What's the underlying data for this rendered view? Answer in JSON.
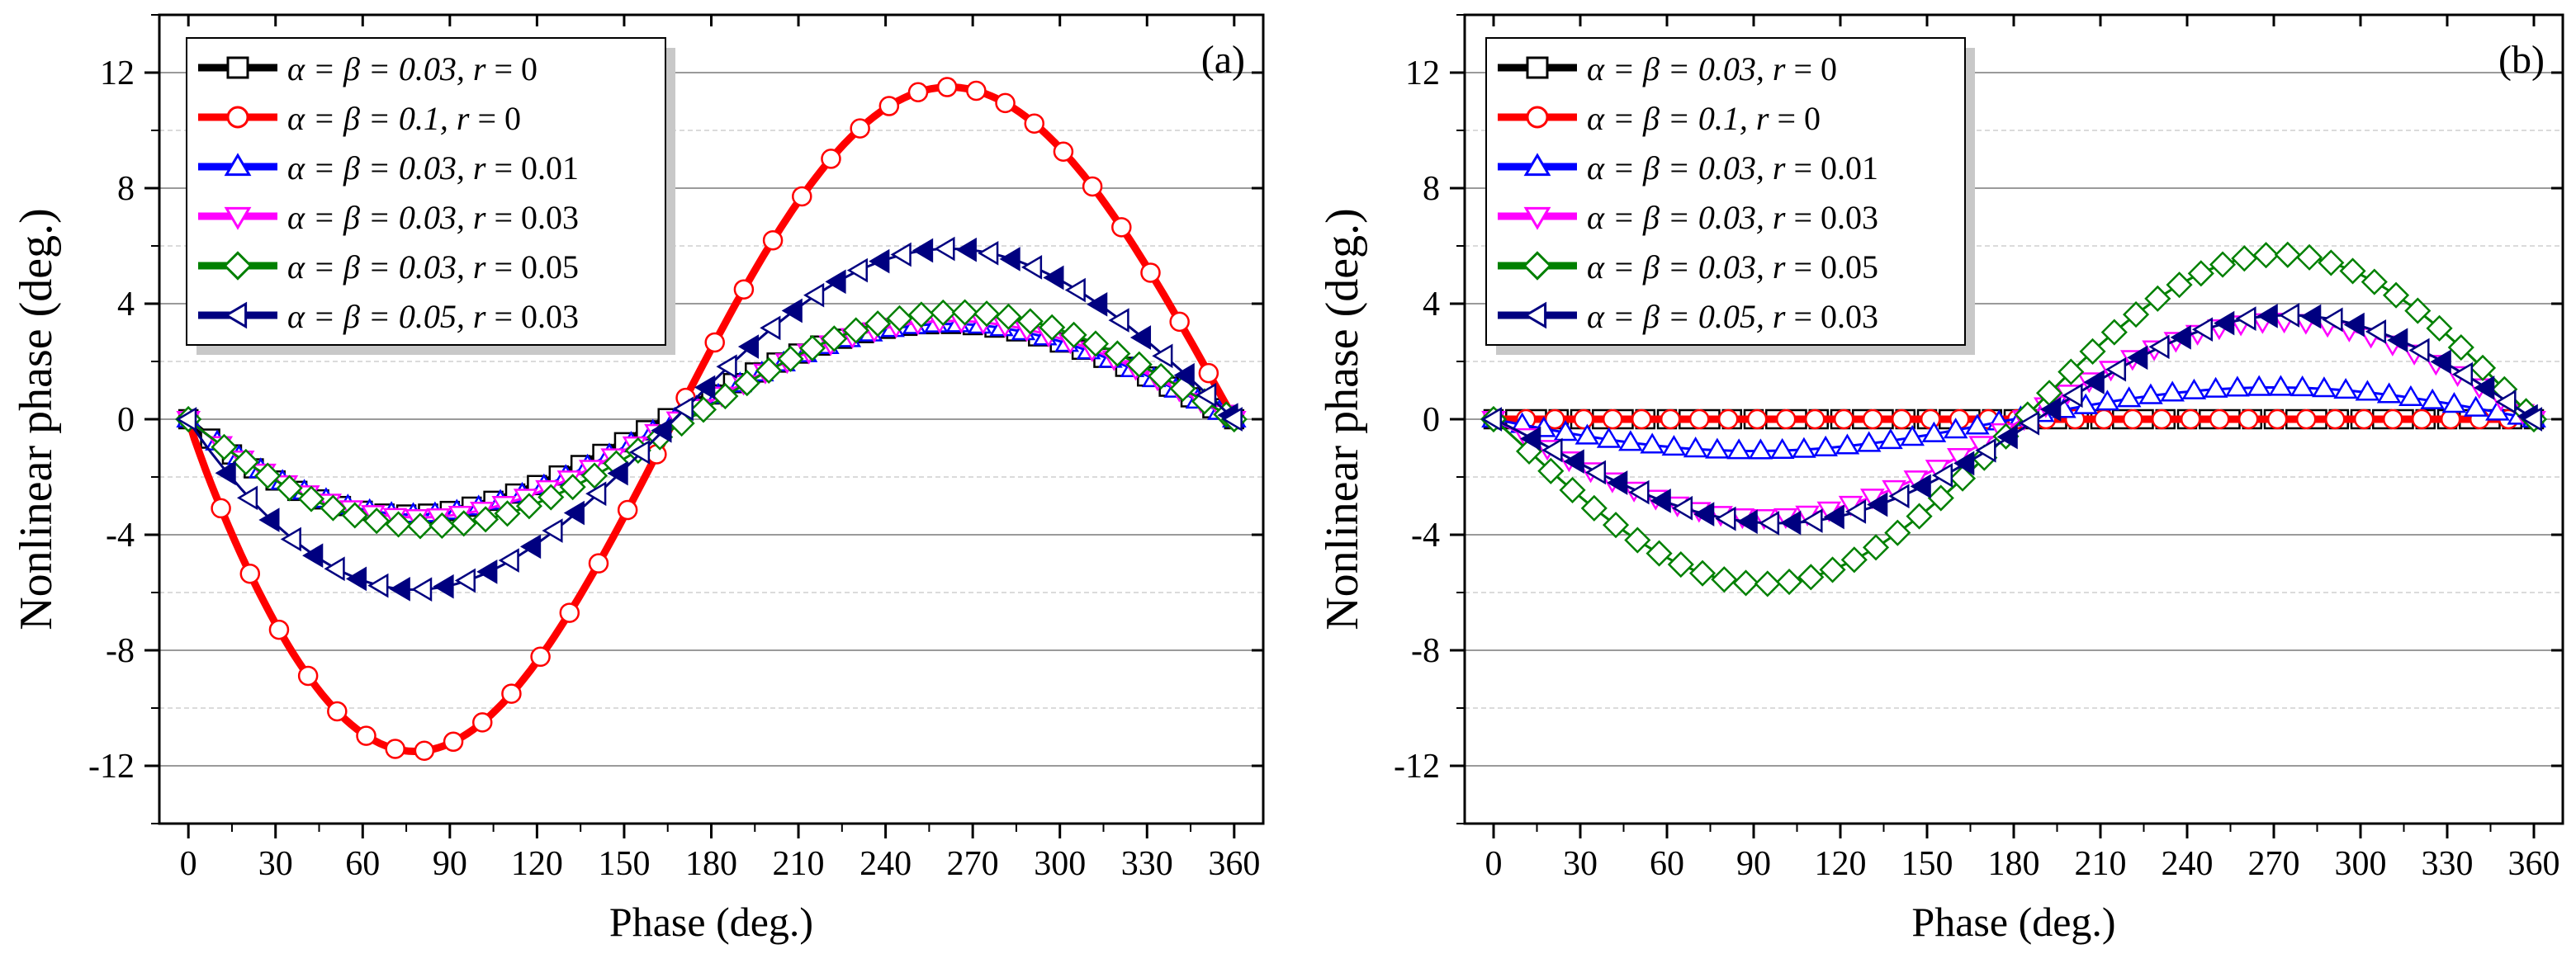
{
  "chart_data": [
    {
      "type": "line",
      "panel_label": "(a)",
      "xlabel": "Phase (deg.)",
      "ylabel": "Nonlinear phase (deg.)",
      "xlim": [
        -10,
        370
      ],
      "ylim": [
        -14,
        14
      ],
      "xticks": [
        "0",
        "30",
        "60",
        "90",
        "120",
        "150",
        "180",
        "210",
        "240",
        "270",
        "300",
        "330",
        "360"
      ],
      "yticks": [
        "-12",
        "-8",
        "-4",
        "0",
        "4",
        "8",
        "12"
      ],
      "grid": true,
      "legend_position": "top-left",
      "series": [
        {
          "name": "α = β = 0.03, r = 0",
          "legend": {
            "pre": "α = β = 0.03, ",
            "r": "r",
            "post": " = 0"
          },
          "color": "#000000",
          "marker": "square",
          "amplitude": 3.3,
          "peak_deg": 260
        },
        {
          "name": "α = β = 0.1, r = 0",
          "legend": {
            "pre": "α = β = 0.1, ",
            "r": "r",
            "post": " = 0"
          },
          "color": "#ff0000",
          "marker": "circle",
          "amplitude": 11.5,
          "peak_deg": 262
        },
        {
          "name": "α = β = 0.03, r = 0.01",
          "legend": {
            "pre": "α = β = 0.03, ",
            "r": "r",
            "post": " = 0.01"
          },
          "color": "#0000ff",
          "marker": "triangle-up",
          "amplitude": 3.3,
          "peak_deg": 262
        },
        {
          "name": "α = β = 0.03, r = 0.03",
          "legend": {
            "pre": "α = β = 0.03, ",
            "r": "r",
            "post": " = 0.03"
          },
          "color": "#ff00ff",
          "marker": "triangle-down",
          "amplitude": 3.4,
          "peak_deg": 263
        },
        {
          "name": "α = β = 0.03, r = 0.05",
          "legend": {
            "pre": "α = β = 0.03, ",
            "r": "r",
            "post": " = 0.05"
          },
          "color": "#008000",
          "marker": "diamond",
          "amplitude": 3.7,
          "peak_deg": 265
        },
        {
          "name": "α = β = 0.05, r = 0.03",
          "legend": {
            "pre": "α = β = 0.05, ",
            "r": "r",
            "post": " = 0.03"
          },
          "color": "#000080",
          "marker": "triangle-left",
          "amplitude": 5.9,
          "peak_deg": 262
        }
      ]
    },
    {
      "type": "line",
      "panel_label": "(b)",
      "xlabel": "Phase (deg.)",
      "ylabel": "Nonlinear phase (deg.)",
      "xlim": [
        -10,
        370
      ],
      "ylim": [
        -14,
        14
      ],
      "xticks": [
        "0",
        "30",
        "60",
        "90",
        "120",
        "150",
        "180",
        "210",
        "240",
        "270",
        "300",
        "330",
        "360"
      ],
      "yticks": [
        "-12",
        "-8",
        "-4",
        "0",
        "4",
        "8",
        "12"
      ],
      "grid": true,
      "legend_position": "top-left",
      "series": [
        {
          "name": "α = β = 0.03, r = 0",
          "legend": {
            "pre": "α = β = 0.03, ",
            "r": "r",
            "post": " = 0"
          },
          "color": "#000000",
          "marker": "square",
          "amplitude": 0.0,
          "peak_deg": 270
        },
        {
          "name": "α = β = 0.1, r = 0",
          "legend": {
            "pre": "α = β = 0.1, ",
            "r": "r",
            "post": " = 0"
          },
          "color": "#ff0000",
          "marker": "circle",
          "amplitude": 0.0,
          "peak_deg": 270
        },
        {
          "name": "α = β = 0.03, r = 0.01",
          "legend": {
            "pre": "α = β = 0.03, ",
            "r": "r",
            "post": " = 0.01"
          },
          "color": "#0000ff",
          "marker": "triangle-up",
          "amplitude": 1.1,
          "peak_deg": 270
        },
        {
          "name": "α = β = 0.03, r = 0.03",
          "legend": {
            "pre": "α = β = 0.03, ",
            "r": "r",
            "post": " = 0.03"
          },
          "color": "#ff00ff",
          "marker": "triangle-down",
          "amplitude": 3.4,
          "peak_deg": 272
        },
        {
          "name": "α = β = 0.03, r = 0.05",
          "legend": {
            "pre": "α = β = 0.03, ",
            "r": "r",
            "post": " = 0.05"
          },
          "color": "#008000",
          "marker": "diamond",
          "amplitude": 5.7,
          "peak_deg": 272
        },
        {
          "name": "α = β = 0.05, r = 0.03",
          "legend": {
            "pre": "α = β = 0.05, ",
            "r": "r",
            "post": " = 0.03"
          },
          "color": "#000080",
          "marker": "triangle-left",
          "amplitude": 3.6,
          "peak_deg": 275
        }
      ]
    }
  ]
}
